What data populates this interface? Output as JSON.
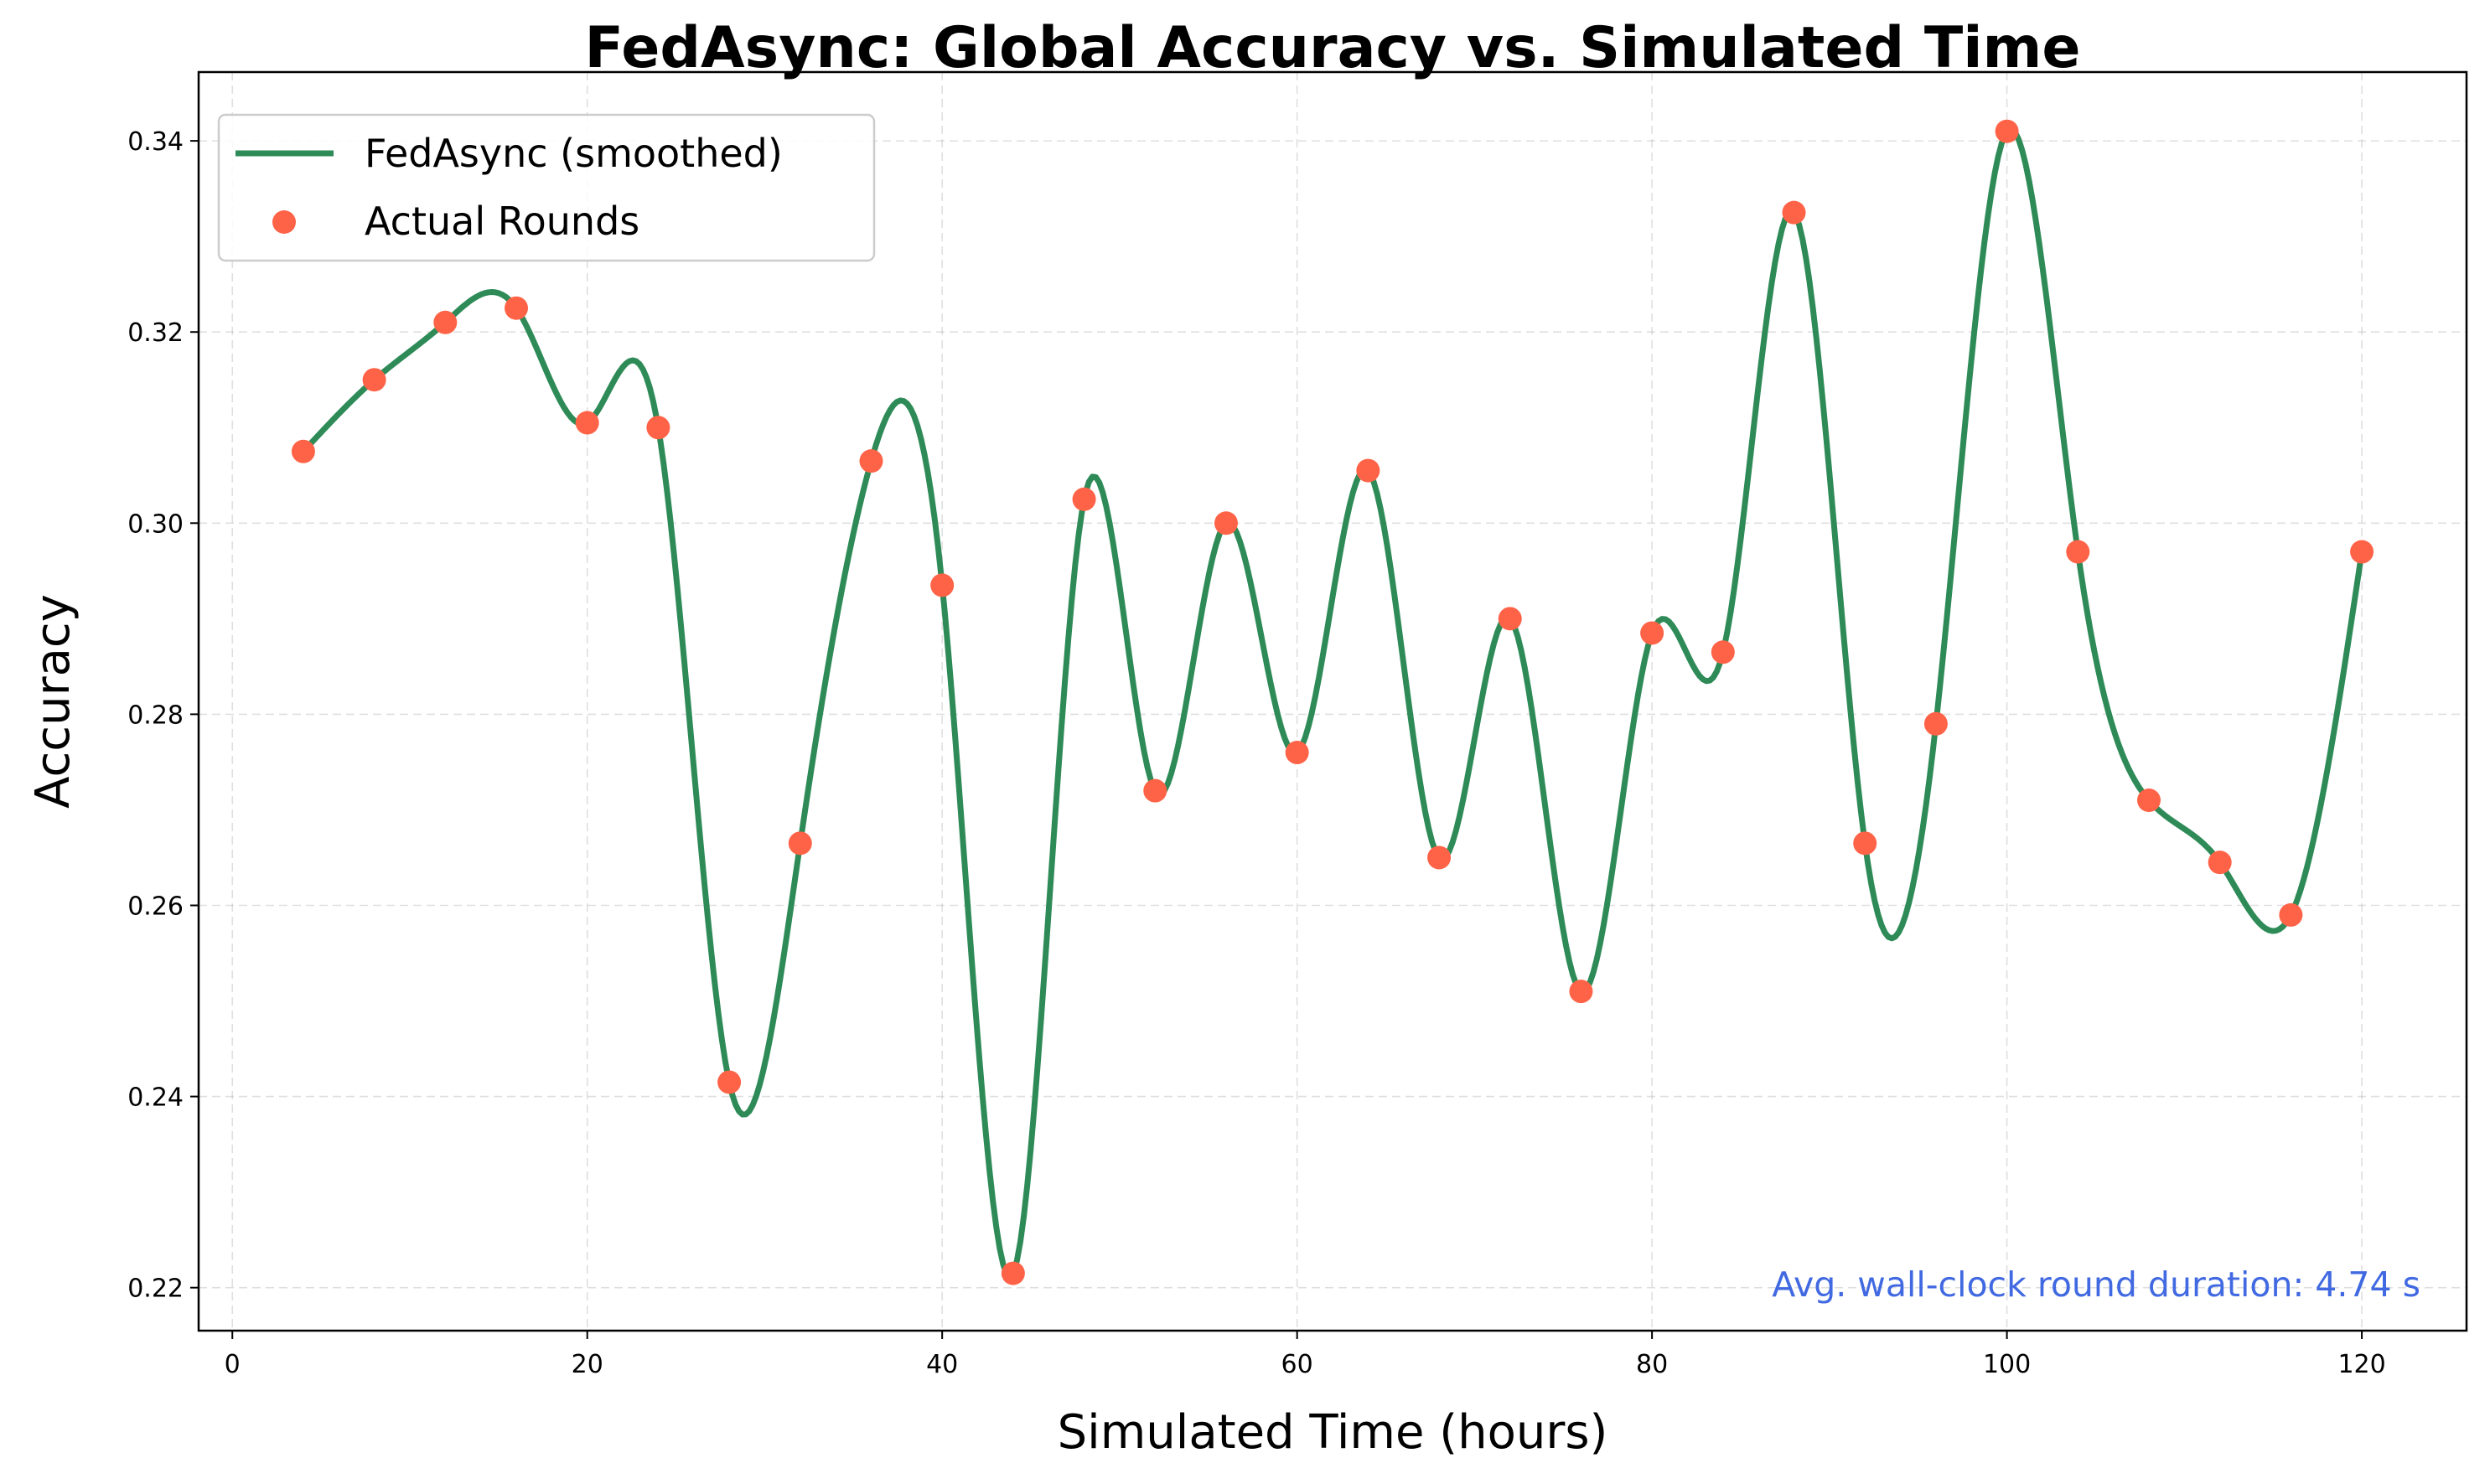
{
  "chart_data": {
    "type": "line",
    "title": "FedAsync: Global Accuracy vs. Simulated Time",
    "xlabel": "Simulated Time (hours)",
    "ylabel": "Accuracy",
    "xlim": [
      -1.9,
      125.9
    ],
    "ylim": [
      0.2155,
      0.3472
    ],
    "xticks": [
      0,
      20,
      40,
      60,
      80,
      100,
      120
    ],
    "yticks": [
      0.22,
      0.24,
      0.26,
      0.28,
      0.3,
      0.32,
      0.34
    ],
    "ytick_labels": [
      "0.22",
      "0.24",
      "0.26",
      "0.28",
      "0.30",
      "0.32",
      "0.34"
    ],
    "grid": true,
    "legend_position": "upper-left",
    "series": [
      {
        "name": "FedAsync (smoothed)",
        "kind": "line",
        "color": "#2e8b57",
        "x": [
          4,
          8,
          12,
          16,
          20,
          24,
          28,
          32,
          36,
          40,
          44,
          48,
          52,
          56,
          60,
          64,
          68,
          72,
          76,
          80,
          84,
          88,
          92,
          96,
          100,
          104,
          108,
          112,
          116,
          120
        ],
        "y": [
          0.3075,
          0.315,
          0.321,
          0.3225,
          0.3105,
          0.31,
          0.2415,
          0.2665,
          0.3065,
          0.2935,
          0.2215,
          0.3025,
          0.272,
          0.3,
          0.276,
          0.3055,
          0.265,
          0.29,
          0.251,
          0.2885,
          0.2865,
          0.3325,
          0.2665,
          0.279,
          0.341,
          0.297,
          0.271,
          0.2645,
          0.259,
          0.297
        ]
      },
      {
        "name": "Actual Rounds",
        "kind": "scatter",
        "color": "#ff6347",
        "x": [
          4,
          8,
          12,
          16,
          20,
          24,
          28,
          32,
          36,
          40,
          44,
          48,
          52,
          56,
          60,
          64,
          68,
          72,
          76,
          80,
          84,
          88,
          92,
          96,
          100,
          104,
          108,
          112,
          116,
          120
        ],
        "y": [
          0.3075,
          0.315,
          0.321,
          0.3225,
          0.3105,
          0.31,
          0.2415,
          0.2665,
          0.3065,
          0.2935,
          0.2215,
          0.3025,
          0.272,
          0.3,
          0.276,
          0.3055,
          0.265,
          0.29,
          0.251,
          0.2885,
          0.2865,
          0.3325,
          0.2665,
          0.279,
          0.341,
          0.297,
          0.271,
          0.2645,
          0.259,
          0.297
        ]
      }
    ],
    "annotation": {
      "text": "Avg. wall-clock round duration: 4.74 s",
      "color": "#4169e1",
      "position": "bottom-right"
    }
  }
}
